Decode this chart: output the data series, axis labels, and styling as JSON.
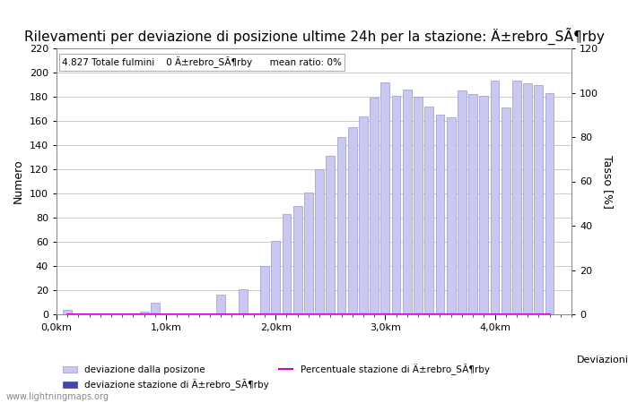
{
  "title": "Rilevamenti per deviazione di posizione ultime 24h per la stazione: Ä±rebro_SÃ¶rby",
  "subtitle": "4.827 Totale fulmini    0 Ä±rebro_SÃ¶rby      mean ratio: 0%",
  "ylabel_left": "Numero",
  "ylabel_right": "Tasso [%]",
  "xlabel": "Deviazioni",
  "bar_positions": [
    0.1,
    0.2,
    0.3,
    0.4,
    0.5,
    0.6,
    0.7,
    0.8,
    0.9,
    1.0,
    1.1,
    1.2,
    1.3,
    1.4,
    1.5,
    1.6,
    1.7,
    1.8,
    1.9,
    2.0,
    2.1,
    2.2,
    2.3,
    2.4,
    2.5,
    2.6,
    2.7,
    2.8,
    2.9,
    3.0,
    3.1,
    3.2,
    3.3,
    3.4,
    3.5,
    3.6,
    3.7,
    3.8,
    3.9,
    4.0,
    4.1,
    4.2,
    4.3,
    4.4,
    4.5
  ],
  "bar_values": [
    4,
    0,
    0,
    0,
    0,
    0,
    1,
    2,
    10,
    0,
    0,
    1,
    0,
    0,
    16,
    0,
    21,
    0,
    40,
    61,
    83,
    90,
    101,
    120,
    131,
    147,
    155,
    164,
    179,
    192,
    181,
    186,
    180,
    172,
    165,
    163,
    185,
    182,
    181,
    193,
    171,
    193,
    191,
    190,
    183
  ],
  "station_bar_values": [
    0,
    0,
    0,
    0,
    0,
    0,
    0,
    0,
    0,
    0,
    0,
    0,
    0,
    0,
    0,
    0,
    0,
    0,
    0,
    0,
    0,
    0,
    0,
    0,
    0,
    0,
    0,
    0,
    0,
    0,
    0,
    0,
    0,
    0,
    0,
    0,
    0,
    0,
    0,
    0,
    0,
    0,
    0,
    0,
    0
  ],
  "line_values": [
    0,
    0,
    0,
    0,
    0,
    0,
    0,
    0,
    0,
    0,
    0,
    0,
    0,
    0,
    0,
    0,
    0,
    0,
    0,
    0,
    0,
    0,
    0,
    0,
    0,
    0,
    0,
    0,
    0,
    0,
    0,
    0,
    0,
    0,
    0,
    0,
    0,
    0,
    0,
    0,
    0,
    0,
    0,
    0,
    0
  ],
  "bar_color": "#c8c8f0",
  "bar_edge_color": "#9898c8",
  "station_bar_color": "#4444aa",
  "ylim_left": [
    0,
    220
  ],
  "ylim_right": [
    0,
    120
  ],
  "xlim": [
    0.0,
    4.7
  ],
  "xtick_positions": [
    0.0,
    1.0,
    2.0,
    3.0,
    4.0
  ],
  "xtick_labels": [
    "0,0km",
    "1,0km",
    "2,0km",
    "3,0km",
    "4,0km"
  ],
  "ytick_left": [
    0,
    20,
    40,
    60,
    80,
    100,
    120,
    140,
    160,
    180,
    200,
    220
  ],
  "ytick_right": [
    0,
    20,
    40,
    60,
    80,
    100,
    120
  ],
  "bar_width": 0.08,
  "grid_color": "#cccccc",
  "background_color": "#ffffff",
  "legend_label_bar": "deviazione dalla posizone",
  "legend_label_station_bar": "deviazione stazione di Ä±rebro_SÃ¶rby",
  "legend_label_line": "Percentuale stazione di Ä±rebro_SÃ¶rby",
  "line_color": "#cc00cc",
  "watermark": "www.lightningmaps.org",
  "title_fontsize": 11,
  "axis_fontsize": 9,
  "tick_fontsize": 8
}
